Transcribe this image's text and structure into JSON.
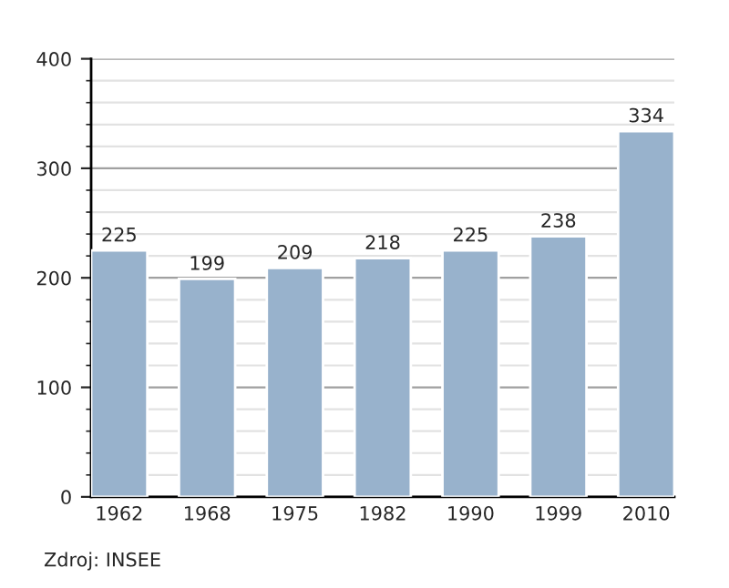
{
  "chart_data": {
    "type": "bar",
    "categories": [
      "1962",
      "1968",
      "1975",
      "1982",
      "1990",
      "1999",
      "2010"
    ],
    "values": [
      225,
      199,
      209,
      218,
      225,
      238,
      334
    ],
    "color": "#98b2cc",
    "data_labels": true,
    "ylim": [
      0,
      400
    ],
    "yticks": [
      0,
      100,
      200,
      300,
      400
    ],
    "grid": "y",
    "annotations": [
      "Zdroj: INSEE"
    ]
  }
}
